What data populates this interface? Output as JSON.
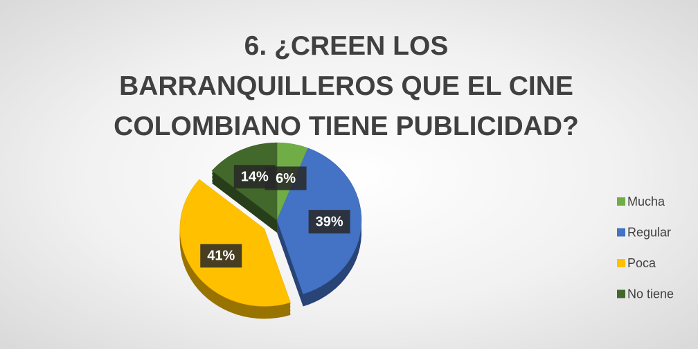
{
  "chart_data": {
    "type": "pie",
    "title": "6. ¿CREEN LOS BARRANQUILLEROS QUE EL CINE COLOMBIANO TIENE PUBLICIDAD?",
    "categories": [
      "Mucha",
      "Regular",
      "Poca",
      "No tiene"
    ],
    "values": [
      6,
      39,
      41,
      14
    ],
    "value_labels": [
      "6%",
      "39%",
      "41%",
      "14%"
    ],
    "colors": [
      "#70ad47",
      "#4472c4",
      "#ffc000",
      "#43682b"
    ],
    "legend": "right"
  }
}
